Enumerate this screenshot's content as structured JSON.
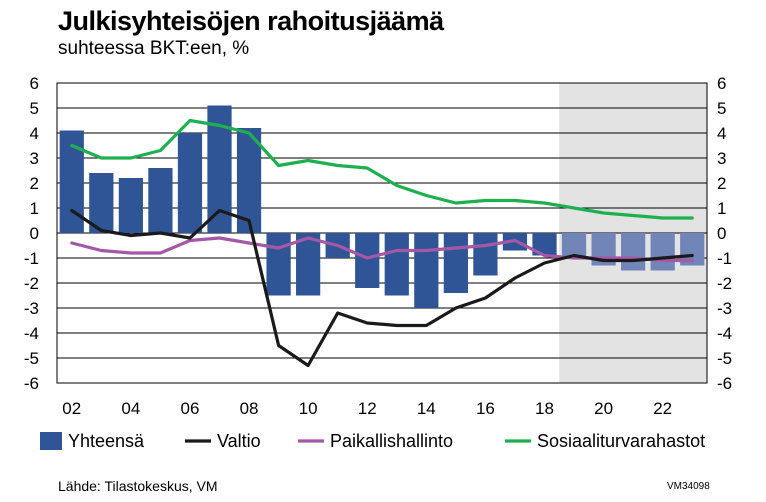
{
  "title": "Julkisyhteisöjen rahoitusjäämä",
  "subtitle": "suhteessa BKT:een, %",
  "source": "Lähde: Tilastokeskus, VM",
  "code": "VM34098",
  "colors": {
    "bar": "#2f5597",
    "bar_forecast": "#7285b8",
    "valtio": "#1a1a1a",
    "paikallis": "#a558a8",
    "sosiaali": "#1eb04f",
    "forecast_bg": "#e3e3e3",
    "grid": "#000000"
  },
  "chart_data": {
    "type": "bar+line",
    "title": "Julkisyhteisöjen rahoitusjäämä",
    "subtitle": "suhteessa BKT:een, %",
    "xlabel": "",
    "ylabel": "",
    "ylim": [
      -6,
      6
    ],
    "yticks": [
      "6",
      "5",
      "4",
      "3",
      "2",
      "1",
      "0",
      "-1",
      "-2",
      "-3",
      "-4",
      "-5",
      "-6"
    ],
    "grid": true,
    "x": [
      2,
      3,
      4,
      5,
      6,
      7,
      8,
      9,
      10,
      11,
      12,
      13,
      14,
      15,
      16,
      17,
      18,
      19,
      20,
      21,
      22,
      23
    ],
    "xticks": [
      "02",
      "04",
      "06",
      "08",
      "10",
      "12",
      "14",
      "16",
      "18",
      "20",
      "22"
    ],
    "forecast_from_year": 19,
    "series": [
      {
        "name": "Yhteensä",
        "kind": "bar",
        "values": [
          4.1,
          2.4,
          2.2,
          2.6,
          4.0,
          5.1,
          4.2,
          -2.5,
          -2.5,
          -1.0,
          -2.2,
          -2.5,
          -3.0,
          -2.4,
          -1.7,
          -0.7,
          -0.9,
          -1.0,
          -1.3,
          -1.5,
          -1.5,
          -1.3
        ]
      },
      {
        "name": "Valtio",
        "kind": "line",
        "values": [
          0.9,
          0.1,
          -0.1,
          0.0,
          -0.2,
          0.9,
          0.5,
          -4.5,
          -5.3,
          -3.2,
          -3.6,
          -3.7,
          -3.7,
          -3.0,
          -2.6,
          -1.8,
          -1.2,
          -0.9,
          -1.1,
          -1.1,
          -1.0,
          -0.9
        ]
      },
      {
        "name": "Paikallishallinto",
        "kind": "line",
        "values": [
          -0.4,
          -0.7,
          -0.8,
          -0.8,
          -0.3,
          -0.2,
          -0.4,
          -0.6,
          -0.2,
          -0.5,
          -1.0,
          -0.7,
          -0.7,
          -0.6,
          -0.5,
          -0.3,
          -0.9,
          -1.0,
          -1.0,
          -1.0,
          -1.1,
          -1.1
        ]
      },
      {
        "name": "Sosiaaliturvarahastot",
        "kind": "line",
        "values": [
          3.5,
          3.0,
          3.0,
          3.3,
          4.5,
          4.3,
          4.0,
          2.7,
          2.9,
          2.7,
          2.6,
          1.9,
          1.5,
          1.2,
          1.3,
          1.3,
          1.2,
          1.0,
          0.8,
          0.7,
          0.6,
          0.6
        ]
      }
    ],
    "legend": [
      "Yhteensä",
      "Valtio",
      "Paikallishallinto",
      "Sosiaaliturvarahastot"
    ],
    "legend_position": "bottom"
  }
}
